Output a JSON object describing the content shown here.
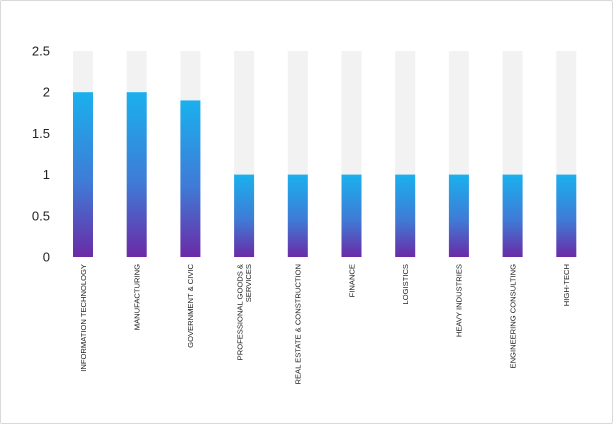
{
  "chart_data": {
    "type": "bar",
    "categories": [
      [
        "INFORMATION TECHNOLOGY"
      ],
      [
        "MANUFACTURING"
      ],
      [
        "GOVERNMENT & CIVIC"
      ],
      [
        "PROFESSIONAL GOODS &",
        "SERVICES"
      ],
      [
        "REAL ESTATE & CONSTRUCTION"
      ],
      [
        "FINANCE"
      ],
      [
        "LOGISTICS"
      ],
      [
        "HEAVY INDUSTRIES"
      ],
      [
        "ENGINEERING CONSULTING"
      ],
      [
        "HIGH-TECH"
      ]
    ],
    "values": [
      2.0,
      2.0,
      1.9,
      1.0,
      1.0,
      1.0,
      1.0,
      1.0,
      1.0,
      1.0
    ],
    "background_value": 2.5,
    "ylim": [
      0,
      2.5
    ],
    "yticks": [
      "0",
      "0.5",
      "1",
      "1.5",
      "2",
      "2.5"
    ],
    "title": "",
    "xlabel": "",
    "ylabel": "",
    "grid": false,
    "legend": "none",
    "colors": {
      "bar_top": "#1ab0ee",
      "bar_bottom": "#6b2aa6",
      "track": "#f2f2f2",
      "text": "#222222",
      "border": "#d9d9d9"
    }
  }
}
